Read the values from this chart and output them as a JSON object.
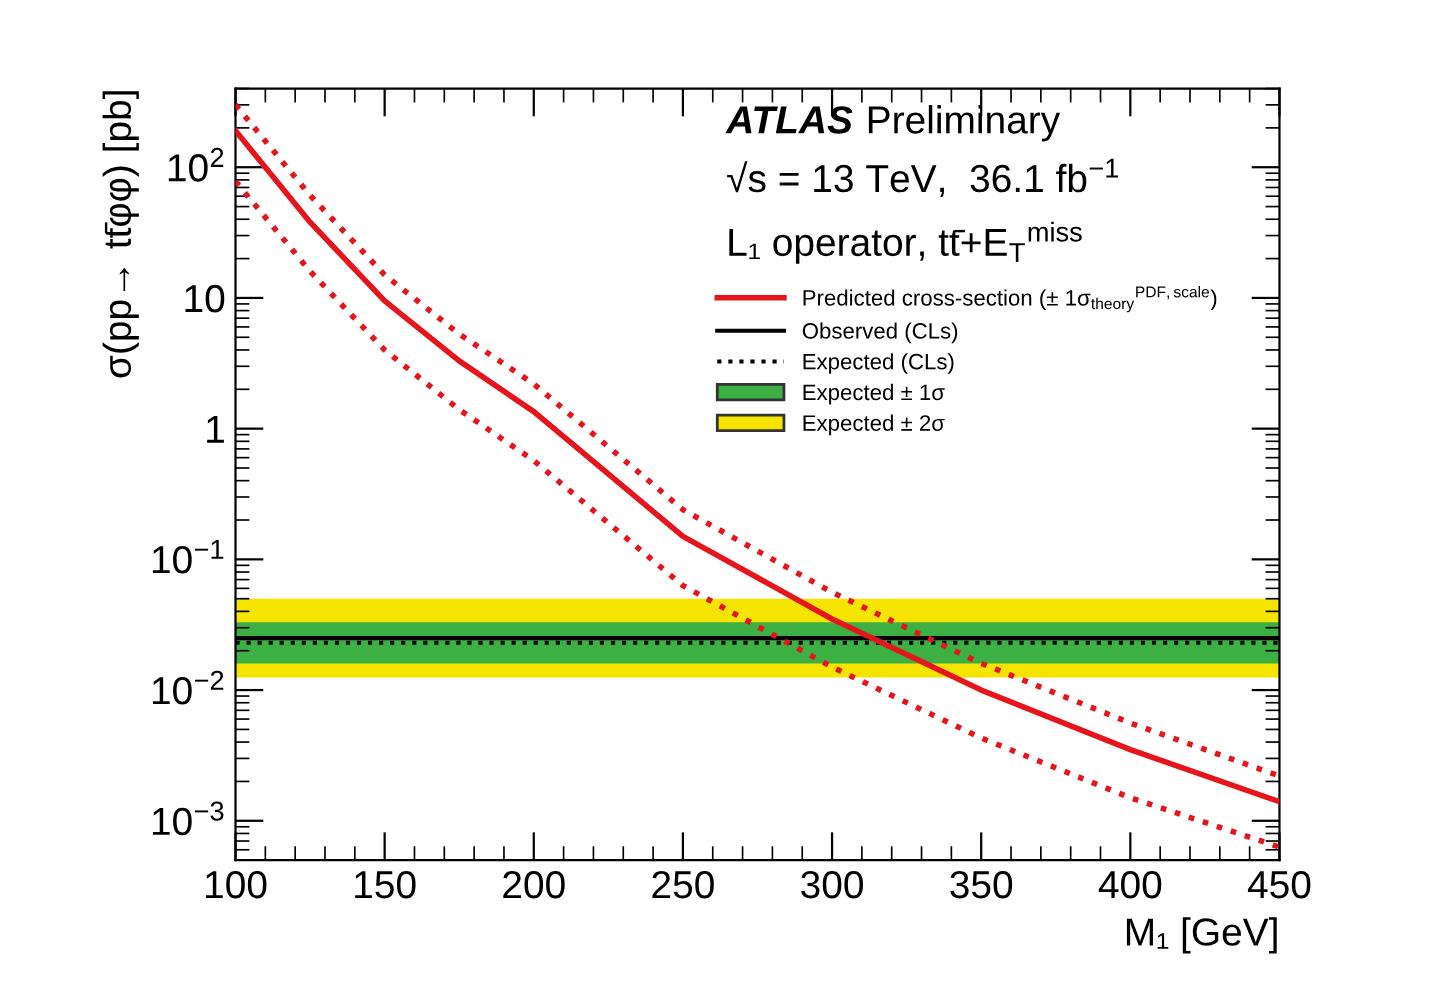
{
  "chart_data": {
    "type": "line",
    "xlabel": "M₁ [GeV]",
    "ylabel": "σ(pp→ tt̄φφ) [pb]",
    "annotations": [
      "ATLAS",
      "Preliminary",
      "√s = 13 TeV,  36.1 fb$^{−1}$",
      "L₁ operator, tt̄+E$_{T}$$^{miss}$"
    ],
    "x": [
      100,
      125,
      150,
      175,
      200,
      250,
      300,
      350,
      400,
      450
    ],
    "series": [
      {
        "name": "Predicted cross-section (± 1σ$_{theory}$$^{PDF,scale}$)",
        "color": "#e8141c",
        "line_style": "solid",
        "values": [
          190,
          38,
          9.5,
          3.3,
          1.35,
          0.15,
          0.035,
          0.01,
          0.0035,
          0.0014
        ]
      },
      {
        "color": "#e8141c",
        "line_style": "dotted",
        "values": [
          300,
          61,
          15,
          5.3,
          2.2,
          0.24,
          0.056,
          0.016,
          0.0056,
          0.0022
        ]
      },
      {
        "color": "#e8141c",
        "line_style": "dotted",
        "values": [
          78,
          16,
          4,
          1.4,
          0.57,
          0.063,
          0.015,
          0.0043,
          0.0015,
          0.00063
        ]
      }
    ],
    "ref_lines": [
      {
        "axis": "y",
        "value": 0.025,
        "label": "Observed (CLs)",
        "color": "#000000",
        "line_style": "solid"
      },
      {
        "axis": "y",
        "value": 0.023,
        "label": "Expected (CLs)",
        "color": "#000000",
        "line_style": "dotted"
      }
    ],
    "bands": [
      {
        "axis": "y",
        "from": 0.0125,
        "to": 0.05,
        "label": "Expected ± 2σ",
        "color": "#f5e400"
      },
      {
        "axis": "y",
        "from": 0.016,
        "to": 0.033,
        "label": "Expected ± 1σ",
        "color": "#3cb043"
      }
    ],
    "log": "y",
    "xlim": [
      100,
      450
    ],
    "ylim": [
      0.0005,
      400
    ],
    "xticks": [
      100,
      150,
      200,
      250,
      300,
      350,
      400,
      450
    ],
    "yticks": [
      {
        "value": 0.001,
        "label": "10$^{−3}$"
      },
      {
        "value": 0.01,
        "label": "10$^{−2}$"
      },
      {
        "value": 0.1,
        "label": "10$^{−1}$"
      },
      1,
      10,
      {
        "value": 100,
        "label": "10$^{2}$"
      }
    ],
    "grid": false,
    "legend": "top right",
    "marker": "none"
  }
}
